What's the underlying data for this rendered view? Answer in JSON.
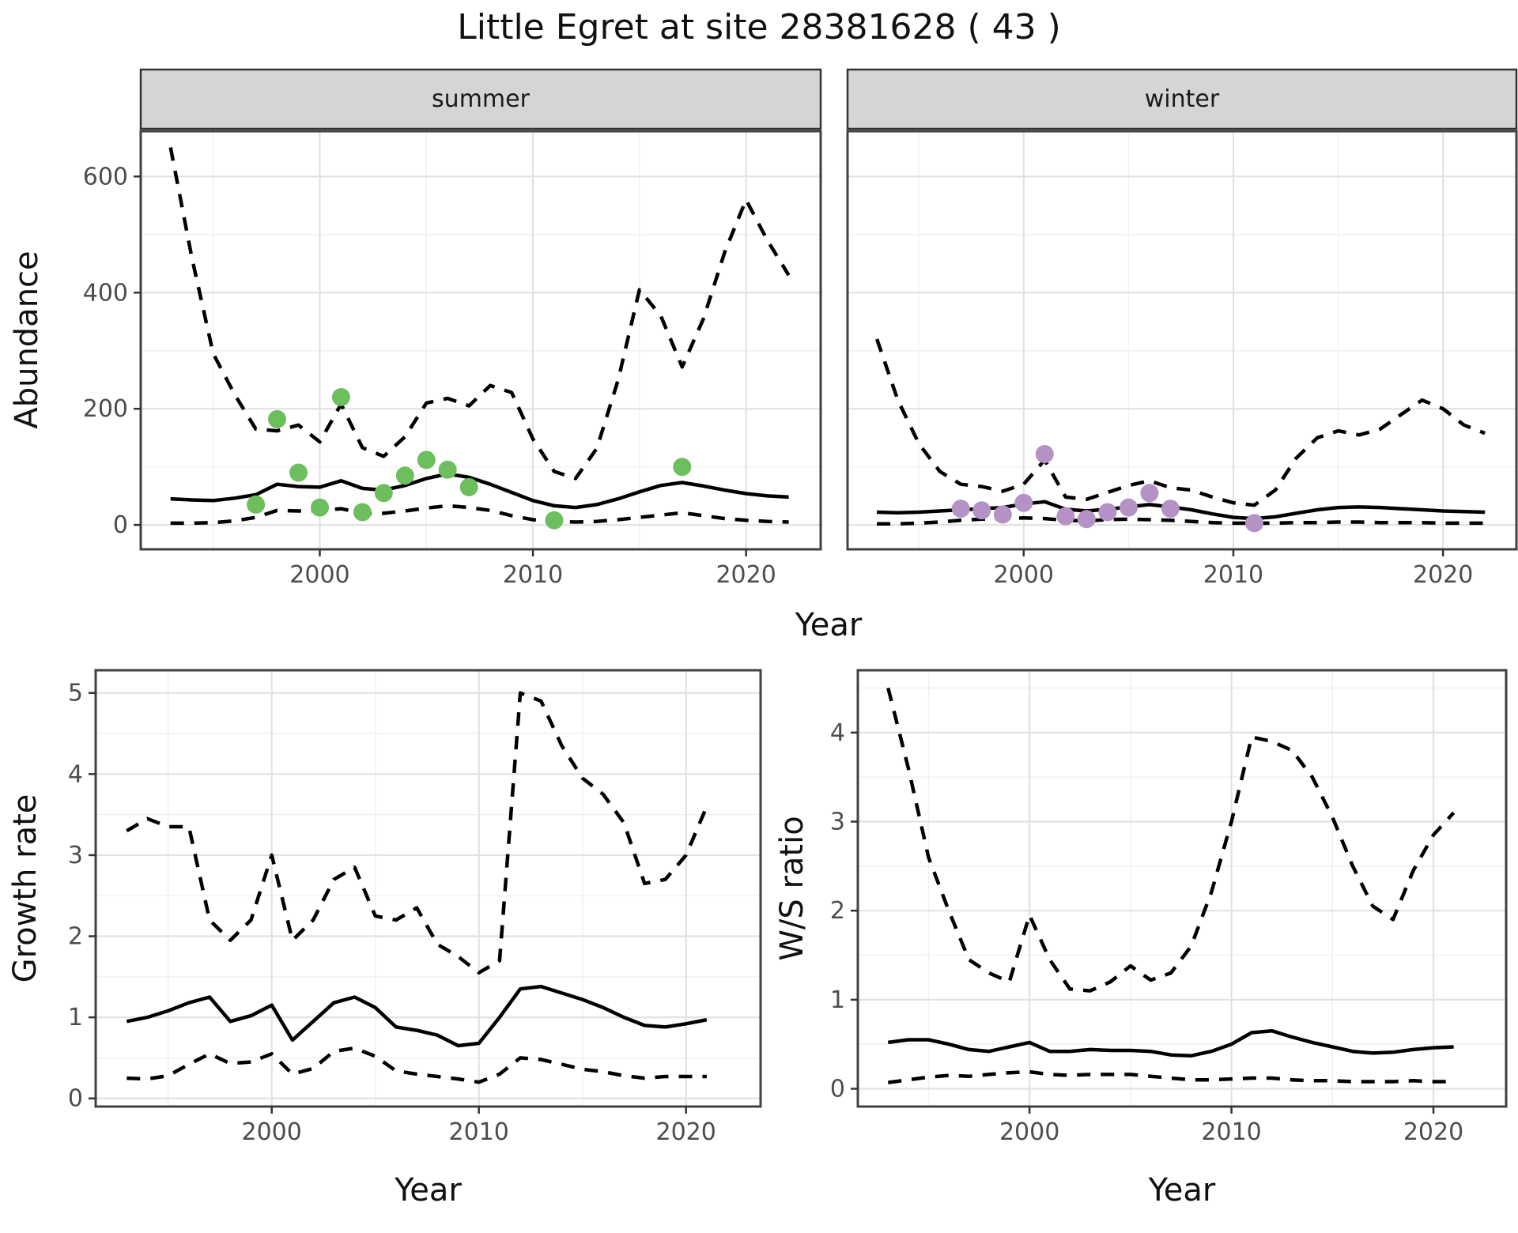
{
  "title": "Little Egret at site 28381628 ( 43 )",
  "top": {
    "xlab": "Year",
    "ylab": "Abundance",
    "facets": [
      {
        "label": "summer"
      },
      {
        "label": "winter"
      }
    ]
  },
  "bottom_left": {
    "xlab": "Year",
    "ylab": "Growth rate"
  },
  "bottom_right": {
    "xlab": "Year",
    "ylab": "W/S ratio"
  },
  "colors": {
    "summer_points": "#6dbe5d",
    "winter_points": "#b592c6",
    "line": "#000000",
    "strip_bg": "#d5d5d5",
    "strip_border": "#333333",
    "panel_border": "#404040",
    "grid_major": "#e2e2e2",
    "grid_minor": "#f1f1f1",
    "tick_mark": "#333333",
    "tick_label": "#4d4d4d"
  },
  "chart_data": [
    {
      "id": "abundance_summer",
      "type": "line",
      "facet": "summer",
      "xlabel": "Year",
      "ylabel": "Abundance",
      "xlim": [
        1991.6,
        2023.5
      ],
      "ylim": [
        -42,
        678
      ],
      "x_ticks": [
        2000,
        2010,
        2020
      ],
      "x_minor": [
        1995,
        2005,
        2015
      ],
      "y_ticks": [
        0,
        200,
        400,
        600
      ],
      "y_minor": [
        100,
        300,
        500
      ],
      "x": [
        1993,
        1994,
        1995,
        1996,
        1997,
        1998,
        1999,
        2000,
        2001,
        2002,
        2003,
        2004,
        2005,
        2006,
        2007,
        2008,
        2009,
        2010,
        2011,
        2012,
        2013,
        2014,
        2015,
        2016,
        2017,
        2018,
        2019,
        2020,
        2021,
        2022
      ],
      "series": [
        {
          "name": "upper_95ci",
          "style": "dashed",
          "values": [
            650,
            460,
            295,
            225,
            165,
            162,
            172,
            143,
            208,
            133,
            118,
            152,
            210,
            218,
            205,
            240,
            228,
            148,
            92,
            80,
            132,
            250,
            405,
            360,
            272,
            355,
            470,
            560,
            490,
            430
          ]
        },
        {
          "name": "mean",
          "style": "solid",
          "values": [
            45,
            43,
            42,
            46,
            52,
            70,
            66,
            65,
            76,
            63,
            60,
            68,
            80,
            88,
            82,
            70,
            56,
            42,
            33,
            30,
            35,
            45,
            57,
            68,
            73,
            67,
            60,
            54,
            50,
            48
          ]
        },
        {
          "name": "lower_95ci",
          "style": "dashed",
          "values": [
            3,
            3,
            4,
            7,
            13,
            25,
            24,
            25,
            28,
            20,
            20,
            24,
            29,
            33,
            30,
            25,
            16,
            9,
            6,
            5,
            6,
            9,
            13,
            17,
            21,
            16,
            11,
            8,
            6,
            5
          ]
        }
      ],
      "points": {
        "years": [
          1997,
          1998,
          1999,
          2000,
          2001,
          2002,
          2003,
          2004,
          2005,
          2006,
          2007,
          2011,
          2017
        ],
        "values": [
          35,
          182,
          90,
          30,
          220,
          22,
          55,
          85,
          112,
          95,
          65,
          8,
          100
        ],
        "color": "#6dbe5d"
      }
    },
    {
      "id": "abundance_winter",
      "type": "line",
      "facet": "winter",
      "xlabel": "Year",
      "ylabel": "Abundance",
      "xlim": [
        1991.6,
        2023.5
      ],
      "ylim": [
        -42,
        678
      ],
      "x_ticks": [
        2000,
        2010,
        2020
      ],
      "x_minor": [
        1995,
        2005,
        2015
      ],
      "y_ticks": [
        0,
        200,
        400,
        600
      ],
      "y_minor": [
        100,
        300,
        500
      ],
      "x": [
        1993,
        1994,
        1995,
        1996,
        1997,
        1998,
        1999,
        2000,
        2001,
        2002,
        2003,
        2004,
        2005,
        2006,
        2007,
        2008,
        2009,
        2010,
        2011,
        2012,
        2013,
        2014,
        2015,
        2016,
        2017,
        2018,
        2019,
        2020,
        2021,
        2022
      ],
      "series": [
        {
          "name": "upper_95ci",
          "style": "dashed",
          "values": [
            320,
            215,
            140,
            92,
            70,
            66,
            58,
            70,
            112,
            48,
            44,
            56,
            68,
            76,
            64,
            60,
            48,
            38,
            34,
            60,
            115,
            150,
            162,
            155,
            165,
            190,
            215,
            200,
            172,
            158
          ]
        },
        {
          "name": "mean",
          "style": "solid",
          "values": [
            22,
            21,
            22,
            24,
            26,
            28,
            30,
            36,
            40,
            27,
            24,
            27,
            31,
            35,
            31,
            26,
            19,
            13,
            11,
            14,
            20,
            26,
            30,
            31,
            30,
            28,
            26,
            24,
            23,
            22
          ]
        },
        {
          "name": "lower_95ci",
          "style": "dashed",
          "values": [
            2,
            2,
            3,
            5,
            8,
            10,
            11,
            12,
            11,
            8,
            7,
            9,
            10,
            9,
            8,
            6,
            4,
            3,
            3,
            3,
            4,
            4,
            5,
            5,
            4,
            4,
            4,
            3,
            3,
            3
          ]
        }
      ],
      "points": {
        "years": [
          1997,
          1998,
          1999,
          2000,
          2001,
          2002,
          2003,
          2004,
          2005,
          2006,
          2007,
          2011
        ],
        "values": [
          28,
          25,
          18,
          38,
          122,
          15,
          10,
          22,
          30,
          55,
          28,
          3
        ],
        "color": "#b592c6"
      }
    },
    {
      "id": "growth_rate",
      "type": "line",
      "xlabel": "Year",
      "ylabel": "Growth rate",
      "xlim": [
        1991.5,
        2023.6
      ],
      "ylim": [
        -0.1,
        5.28
      ],
      "x_ticks": [
        2000,
        2010,
        2020
      ],
      "x_minor": [
        1995,
        2005,
        2015
      ],
      "y_ticks": [
        0,
        1,
        2,
        3,
        4,
        5
      ],
      "y_minor": [
        0.5,
        1.5,
        2.5,
        3.5,
        4.5
      ],
      "x": [
        1993,
        1994,
        1995,
        1996,
        1997,
        1998,
        1999,
        2000,
        2001,
        2002,
        2003,
        2004,
        2005,
        2006,
        2007,
        2008,
        2009,
        2010,
        2011,
        2012,
        2013,
        2014,
        2015,
        2016,
        2017,
        2018,
        2019,
        2020,
        2021
      ],
      "series": [
        {
          "name": "upper_95ci",
          "style": "dashed",
          "values": [
            3.3,
            3.45,
            3.35,
            3.35,
            2.2,
            1.95,
            2.2,
            3.0,
            1.95,
            2.2,
            2.7,
            2.85,
            2.25,
            2.2,
            2.35,
            1.9,
            1.75,
            1.55,
            1.7,
            5.0,
            4.9,
            4.35,
            3.95,
            3.75,
            3.4,
            2.65,
            2.7,
            3.0,
            3.6
          ]
        },
        {
          "name": "mean",
          "style": "solid",
          "values": [
            0.95,
            1.0,
            1.08,
            1.18,
            1.25,
            0.95,
            1.02,
            1.15,
            0.72,
            0.95,
            1.18,
            1.25,
            1.12,
            0.88,
            0.84,
            0.78,
            0.65,
            0.68,
            1.0,
            1.35,
            1.38,
            1.3,
            1.22,
            1.12,
            1.0,
            0.9,
            0.88,
            0.92,
            0.97
          ]
        },
        {
          "name": "lower_95ci",
          "style": "dashed",
          "values": [
            0.25,
            0.24,
            0.28,
            0.42,
            0.55,
            0.43,
            0.45,
            0.55,
            0.3,
            0.37,
            0.58,
            0.62,
            0.52,
            0.34,
            0.3,
            0.27,
            0.24,
            0.2,
            0.3,
            0.5,
            0.48,
            0.42,
            0.36,
            0.33,
            0.28,
            0.25,
            0.27,
            0.27,
            0.27
          ]
        }
      ]
    },
    {
      "id": "ws_ratio",
      "type": "line",
      "xlabel": "Year",
      "ylabel": "W/S ratio",
      "xlim": [
        1991.5,
        2023.6
      ],
      "ylim": [
        -0.2,
        4.7
      ],
      "x_ticks": [
        2000,
        2010,
        2020
      ],
      "x_minor": [
        1995,
        2005,
        2015
      ],
      "y_ticks": [
        0,
        1,
        2,
        3,
        4
      ],
      "y_minor": [
        0.5,
        1.5,
        2.5,
        3.5,
        4.5
      ],
      "x": [
        1993,
        1994,
        1995,
        1996,
        1997,
        1998,
        1999,
        2000,
        2001,
        2002,
        2003,
        2004,
        2005,
        2006,
        2007,
        2008,
        2009,
        2010,
        2011,
        2012,
        2013,
        2014,
        2015,
        2016,
        2017,
        2018,
        2019,
        2020,
        2021
      ],
      "series": [
        {
          "name": "upper_95ci",
          "style": "dashed",
          "values": [
            4.5,
            3.6,
            2.6,
            2.0,
            1.45,
            1.3,
            1.2,
            1.95,
            1.45,
            1.12,
            1.1,
            1.2,
            1.38,
            1.22,
            1.3,
            1.6,
            2.2,
            3.0,
            3.95,
            3.9,
            3.8,
            3.5,
            3.05,
            2.5,
            2.05,
            1.9,
            2.45,
            2.85,
            3.1
          ]
        },
        {
          "name": "mean",
          "style": "solid",
          "values": [
            0.52,
            0.55,
            0.55,
            0.5,
            0.44,
            0.42,
            0.47,
            0.52,
            0.42,
            0.42,
            0.44,
            0.43,
            0.43,
            0.42,
            0.38,
            0.37,
            0.42,
            0.5,
            0.63,
            0.65,
            0.58,
            0.52,
            0.47,
            0.42,
            0.4,
            0.41,
            0.44,
            0.46,
            0.47
          ]
        },
        {
          "name": "lower_95ci",
          "style": "dashed",
          "values": [
            0.07,
            0.1,
            0.13,
            0.15,
            0.14,
            0.16,
            0.18,
            0.19,
            0.16,
            0.15,
            0.16,
            0.16,
            0.16,
            0.14,
            0.12,
            0.1,
            0.1,
            0.11,
            0.12,
            0.12,
            0.1,
            0.09,
            0.09,
            0.08,
            0.08,
            0.08,
            0.09,
            0.08,
            0.08
          ]
        }
      ]
    }
  ]
}
